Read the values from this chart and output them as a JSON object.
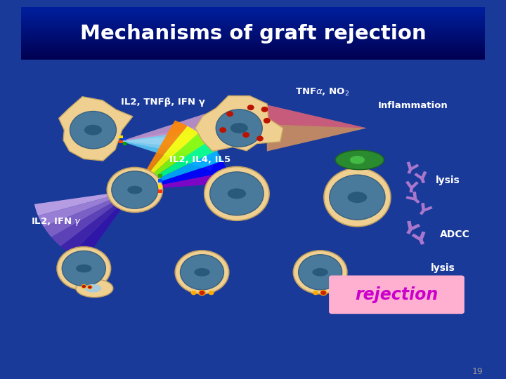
{
  "title": "Mechanisms of graft rejection",
  "title_color": "#FFFFFF",
  "title_bg_top": "#000050",
  "title_bg_bot": "#0020a0",
  "slide_bg": "#1a3a9a",
  "content_bg": "#2040b0",
  "page_num": "19",
  "labels": {
    "il2_tnf_ifn": "IL2, TNFβ, IFN γ",
    "inflammation": "Inflammation",
    "il2_il4_il5": "IL2, IL4, IL5",
    "il2_ifn": "IL2, IFN γ",
    "lysis": "lysis",
    "adcc": "ADCC",
    "lysis2": "lysis",
    "rejection": "rejection"
  },
  "colors": {
    "cell_outer": "#F0D090",
    "cell_inner": "#4a7a9b",
    "nucleus_dark": "#2a5a7b",
    "green_cell": "#2a8a2a",
    "purple": "#aa77cc",
    "rejection_bg": "#FFB0D0",
    "rejection_text": "#CC00CC"
  }
}
